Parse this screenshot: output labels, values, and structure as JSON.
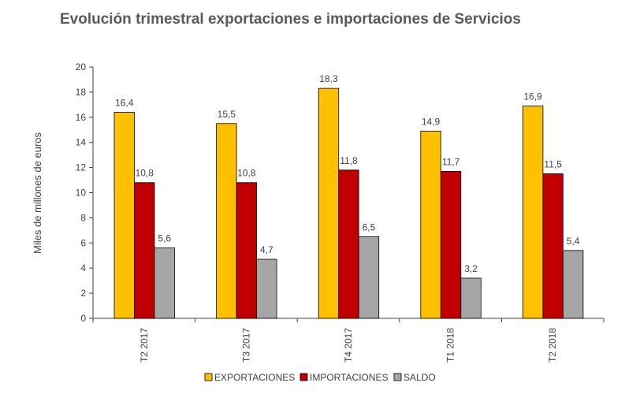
{
  "chart_data": {
    "type": "bar",
    "title": "Evolución trimestral exportaciones e importaciones de Servicios",
    "ylabel": "Miles de millones de euros",
    "xlabel": "",
    "ylim": [
      0,
      20
    ],
    "yticks": [
      0,
      2,
      4,
      6,
      8,
      10,
      12,
      14,
      16,
      18,
      20
    ],
    "categories": [
      "T2 2017",
      "T3 2017",
      "T4 2017",
      "T1 2018",
      "T2 2018"
    ],
    "series": [
      {
        "name": "EXPORTACIONES",
        "color": "#FFC000",
        "values": [
          16.4,
          15.5,
          18.3,
          14.9,
          16.9
        ],
        "labels": [
          "16,4",
          "15,5",
          "18,3",
          "14,9",
          "16,9"
        ]
      },
      {
        "name": "IMPORTACIONES",
        "color": "#C00000",
        "values": [
          10.8,
          10.8,
          11.8,
          11.7,
          11.5
        ],
        "labels": [
          "10,8",
          "10,8",
          "11,8",
          "11,7",
          "11,5"
        ]
      },
      {
        "name": "SALDO",
        "color": "#A6A6A6",
        "values": [
          5.6,
          4.7,
          6.5,
          3.2,
          5.4
        ],
        "labels": [
          "5,6",
          "4,7",
          "6,5",
          "3,2",
          "5,4"
        ]
      }
    ],
    "grid": false,
    "legend_position": "bottom"
  }
}
